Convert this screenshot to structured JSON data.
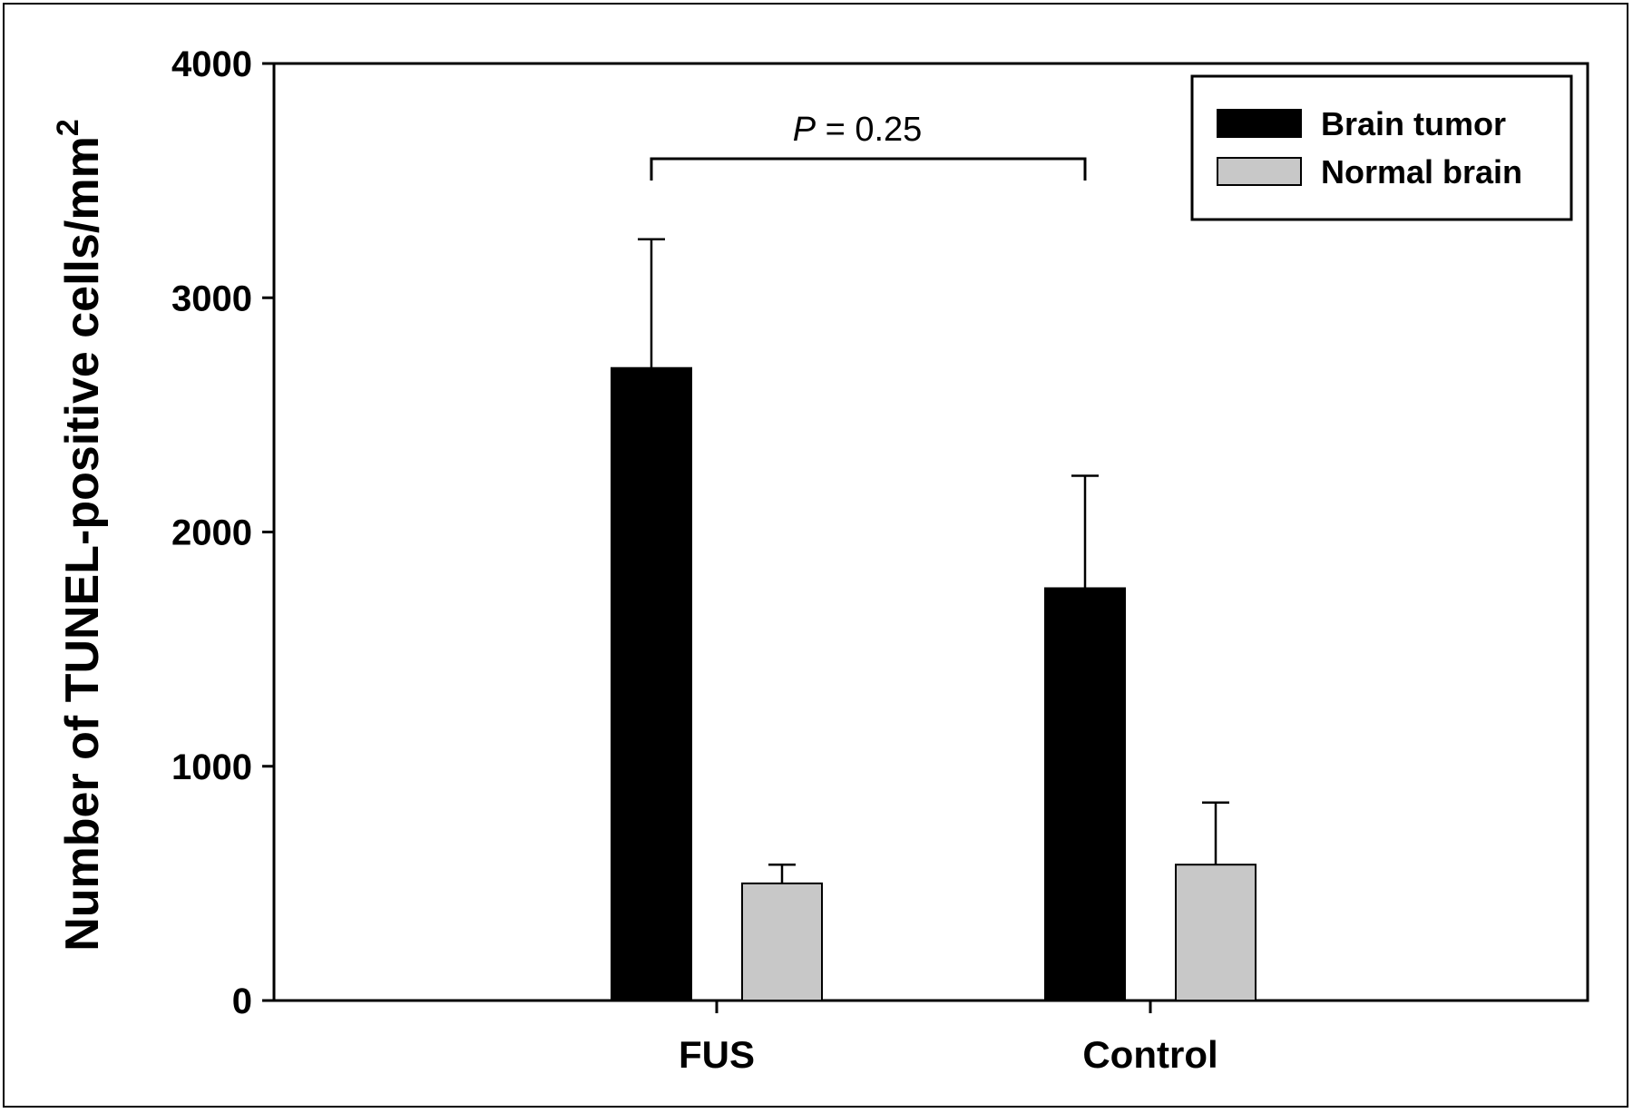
{
  "chart_data": {
    "type": "bar",
    "title": "",
    "xlabel": "",
    "ylabel": "Number of TUNEL-positive cells/mm",
    "ylabel_superscript": "2",
    "ylim": [
      0,
      4000
    ],
    "yticks": [
      "0",
      "1000",
      "2000",
      "3000",
      "4000"
    ],
    "categories": [
      "FUS",
      "Control"
    ],
    "series": [
      {
        "name": "Brain tumor",
        "color": "#000000",
        "values": [
          2700,
          1760
        ],
        "errors": [
          550,
          480
        ]
      },
      {
        "name": "Normal brain",
        "color": "#c8c8c8",
        "values": [
          500,
          580
        ],
        "errors": [
          80,
          265
        ]
      }
    ],
    "legend": {
      "position": "top-right"
    },
    "annotation": {
      "p_symbol": "P",
      "p_text": " = 0.25"
    },
    "grid": false
  }
}
